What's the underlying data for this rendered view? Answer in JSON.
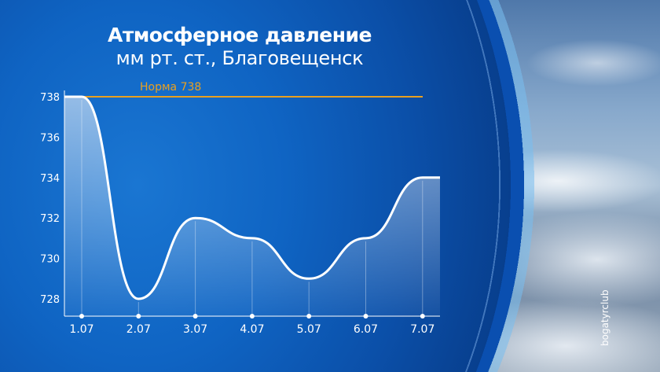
{
  "header": {
    "title": "Атмосферное давление",
    "subtitle": "мм рт. ст., Благовещенск"
  },
  "watermark": "bogatyrclub",
  "colors": {
    "background": "#0f64c3",
    "line": "#ffffff",
    "norm": "#e8a020"
  },
  "chart_data": {
    "type": "area",
    "title": "Атмосферное давление",
    "subtitle": "мм рт. ст., Благовещенск",
    "categories": [
      "1.07",
      "2.07",
      "3.07",
      "4.07",
      "5.07",
      "6.07",
      "7.07"
    ],
    "values": [
      738,
      728,
      732,
      731,
      729,
      731,
      734
    ],
    "yticks": [
      738,
      736,
      734,
      732,
      730,
      728
    ],
    "ylim": [
      727,
      738
    ],
    "grid": false,
    "reference_line": {
      "label": "Норма 738",
      "value": 738
    }
  }
}
